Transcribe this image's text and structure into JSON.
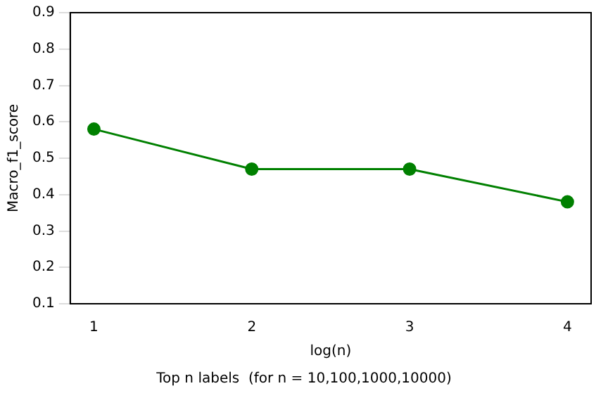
{
  "chart_data": {
    "type": "line",
    "xlabel": "log(n)",
    "ylabel": "Macro_f1_score",
    "x": [
      1,
      2,
      3,
      4
    ],
    "series": [
      {
        "color": "#008000",
        "values": [
          0.58,
          0.47,
          0.47,
          0.38
        ]
      }
    ],
    "xlim": [
      0.85,
      4.15
    ],
    "xticks": [
      1,
      2,
      3,
      4
    ],
    "ylim": [
      0.1,
      0.9
    ],
    "yticks": [
      0.1,
      0.2,
      0.3,
      0.4,
      0.5,
      0.6,
      0.7,
      0.8,
      0.9
    ],
    "marker": "circle",
    "line_style": "solid",
    "grid": false,
    "legend": false,
    "annotations": [
      "Top n labels  (for n = 10,100,1000,10000)"
    ]
  }
}
